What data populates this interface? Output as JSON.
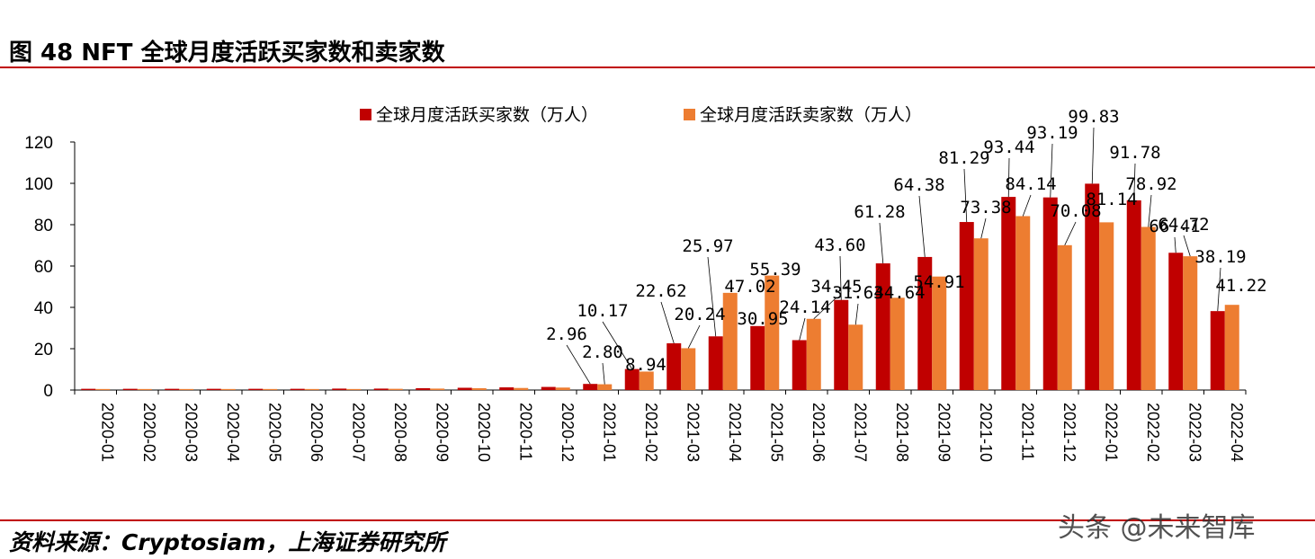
{
  "figure": {
    "title": "图 48 NFT 全球月度活跃买家数和卖家数",
    "source": "资料来源：Cryptosiam，上海证券研究所",
    "watermark": "头条 @未来智库"
  },
  "colors": {
    "buyers": "#C00000",
    "sellers": "#ED7D31",
    "rule": "#C00000",
    "axis": "#000000"
  },
  "chart_data": {
    "type": "bar",
    "categories": [
      "2020-01",
      "2020-02",
      "2020-03",
      "2020-04",
      "2020-05",
      "2020-06",
      "2020-07",
      "2020-08",
      "2020-09",
      "2020-10",
      "2020-11",
      "2020-12",
      "2021-01",
      "2021-02",
      "2021-03",
      "2021-04",
      "2021-05",
      "2021-06",
      "2021-07",
      "2021-08",
      "2021-09",
      "2021-10",
      "2021-11",
      "2021-12",
      "2022-01",
      "2022-02",
      "2022-03",
      "2022-04"
    ],
    "series": [
      {
        "name": "全球月度活跃买家数（万人）",
        "values": [
          0.6,
          0.6,
          0.6,
          0.6,
          0.6,
          0.6,
          0.7,
          0.7,
          0.9,
          1.1,
          1.3,
          1.5,
          2.96,
          10.17,
          22.62,
          25.97,
          30.95,
          24.14,
          43.6,
          61.28,
          64.38,
          81.29,
          93.44,
          93.19,
          99.83,
          91.78,
          66.41,
          38.19
        ]
      },
      {
        "name": "全球月度活跃卖家数（万人）",
        "values": [
          0.5,
          0.5,
          0.5,
          0.5,
          0.5,
          0.5,
          0.5,
          0.6,
          0.7,
          0.9,
          1.0,
          1.2,
          2.8,
          8.94,
          20.24,
          47.02,
          55.39,
          34.45,
          31.63,
          44.64,
          54.91,
          73.38,
          84.14,
          70.08,
          81.14,
          78.92,
          64.72,
          41.22
        ]
      }
    ],
    "data_labels": {
      "buyers": [
        null,
        null,
        null,
        null,
        null,
        null,
        null,
        null,
        null,
        null,
        null,
        null,
        "2.96",
        "10.17",
        "22.62",
        "25.97",
        "30.95",
        "24.14",
        "43.60",
        "61.28",
        "64.38",
        "81.29",
        "93.44",
        "93.19",
        "99.83",
        "91.78",
        "66.41",
        "38.19"
      ],
      "sellers": [
        null,
        null,
        null,
        null,
        null,
        null,
        null,
        null,
        null,
        null,
        null,
        null,
        "2.80",
        "8.94",
        "20.24",
        "47.02",
        "55.39",
        "34.45",
        "31.63",
        "44.64",
        "54.91",
        "73.38",
        "84.14",
        "70.08",
        "81.14",
        "78.92",
        "64.72",
        "41.22"
      ]
    },
    "yticks": [
      "0",
      "20",
      "40",
      "60",
      "80",
      "100",
      "120"
    ],
    "ylim": [
      0,
      120
    ],
    "grid": false,
    "legend_position": "top"
  }
}
